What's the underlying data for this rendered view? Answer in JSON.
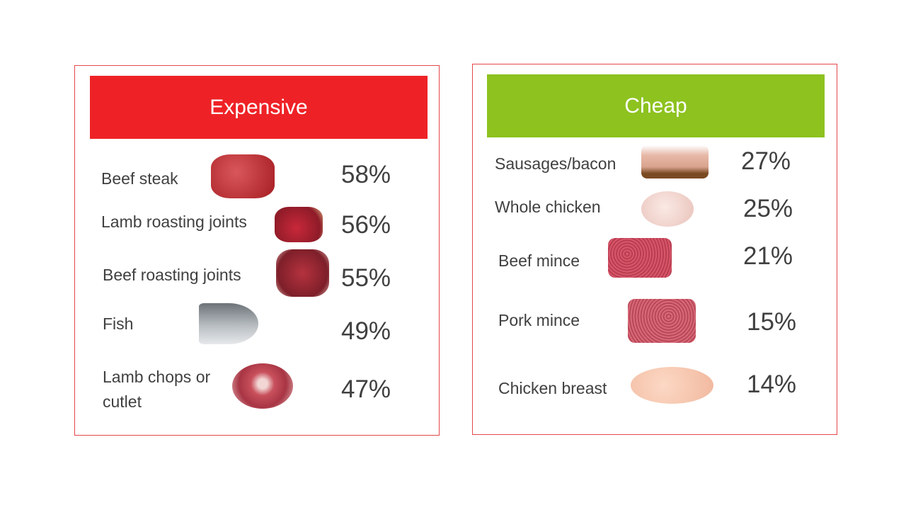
{
  "colors": {
    "expensive": "#ee2226",
    "cheap": "#8dc21f",
    "border": "#e5474b"
  },
  "expensive": {
    "title": "Expensive",
    "items": [
      {
        "label": "Beef steak",
        "value": "58%",
        "icon": "beef-steak-image"
      },
      {
        "label": "Lamb roasting joints",
        "value": "56%",
        "icon": "lamb-roast-image"
      },
      {
        "label": "Beef roasting joints",
        "value": "55%",
        "icon": "beef-roast-image"
      },
      {
        "label": "Fish",
        "value": "49%",
        "icon": "fish-image"
      },
      {
        "label": "Lamb chops or cutlet",
        "value": "47%",
        "icon": "lamb-chops-image"
      }
    ]
  },
  "cheap": {
    "title": "Cheap",
    "items": [
      {
        "label": "Sausages/bacon",
        "value": "27%",
        "icon": "sausages-bacon-image"
      },
      {
        "label": "Whole chicken",
        "value": "25%",
        "icon": "whole-chicken-image"
      },
      {
        "label": "Beef mince",
        "value": "21%",
        "icon": "beef-mince-image"
      },
      {
        "label": "Pork mince",
        "value": "15%",
        "icon": "pork-mince-image"
      },
      {
        "label": "Chicken breast",
        "value": "14%",
        "icon": "chicken-breast-image"
      }
    ]
  }
}
